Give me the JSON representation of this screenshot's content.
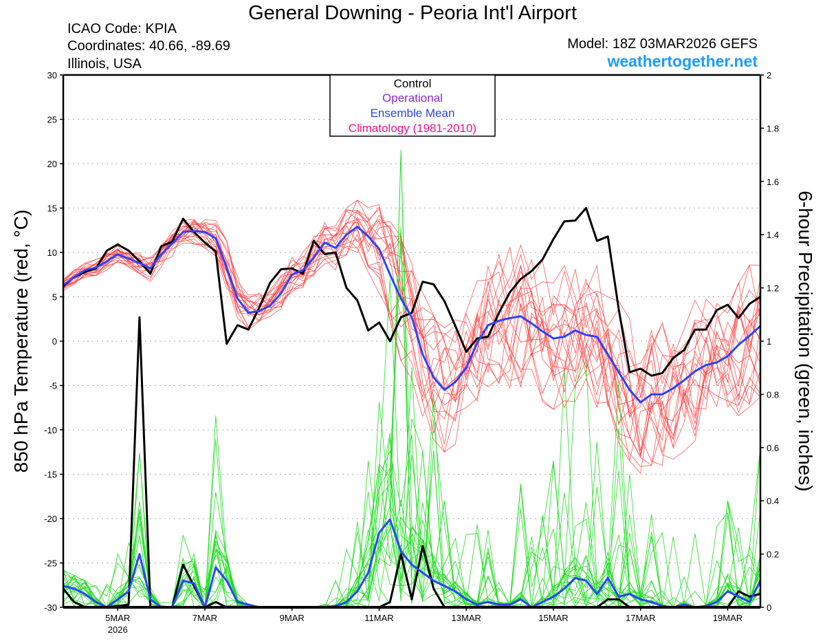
{
  "header": {
    "title": "General Downing - Peoria Int'l Airport",
    "icao": "ICAO Code: KPIA",
    "coords": "Coordinates: 40.66, -89.69",
    "region": "Illinois, USA",
    "model": "Model: 18Z 03MAR2026 GEFS",
    "site": "weathertogether.net"
  },
  "colors": {
    "control": "#000000",
    "operational": "#8a2be2",
    "mean": "#2a44ff",
    "climatology": "#ee1289",
    "members_temp": "#ff4040",
    "members_precip": "#22dd22",
    "site": "#1e9bff"
  },
  "chart_data": {
    "type": "line",
    "title": "General Downing - Peoria Int'l Airport",
    "ylabel": "850 hPa Temperature (red, °C)",
    "y2label": "6-hour Precipitation (green, inches)",
    "xlabel": "",
    "x_units": "day of March 2026 (6-hourly from 18Z 03MAR)",
    "x_start": 3.75,
    "x_step": 0.25,
    "xlim": [
      3.75,
      19.75
    ],
    "ylim": [
      -30,
      30
    ],
    "y2lim": [
      0,
      2
    ],
    "x_ticks": [
      {
        "v": 5,
        "label": "5MAR",
        "sub": "2026"
      },
      {
        "v": 7,
        "label": "7MAR"
      },
      {
        "v": 9,
        "label": "9MAR"
      },
      {
        "v": 11,
        "label": "11MAR"
      },
      {
        "v": 13,
        "label": "13MAR"
      },
      {
        "v": 15,
        "label": "15MAR"
      },
      {
        "v": 17,
        "label": "17MAR"
      },
      {
        "v": 19,
        "label": "19MAR"
      }
    ],
    "y_ticks": [
      "-30",
      "-25",
      "-20",
      "-15",
      "-10",
      "-5",
      "0",
      "5",
      "10",
      "15",
      "20",
      "25",
      "30"
    ],
    "y2_ticks": [
      "0",
      "0.2",
      "0.4",
      "0.6",
      "0.8",
      "1",
      "1.2",
      "1.4",
      "1.6",
      "1.8",
      "2"
    ],
    "grid": true,
    "legend": {
      "placement": "top-center",
      "entries": [
        "Control",
        "Operational",
        "Ensemble Mean",
        "Climatology (1981-2010)"
      ]
    },
    "series": [
      {
        "name": "Control temperature",
        "axis": "left",
        "values": [
          6.2,
          7.2,
          7.8,
          8.2,
          10.2,
          10.9,
          10.2,
          9.0,
          7.6,
          10.7,
          11.2,
          13.8,
          12.3,
          11.1,
          10.1,
          -0.3,
          1.8,
          1.3,
          3.8,
          6.6,
          8.1,
          8.2,
          7.6,
          11.3,
          9.8,
          10.0,
          6.0,
          4.6,
          1.2,
          2.1,
          0.0,
          2.7,
          3.2,
          6.7,
          6.4,
          4.5,
          1.7,
          -1.2,
          0.3,
          0.5,
          3.2,
          5.5,
          7.0,
          7.9,
          9.2,
          11.5,
          13.5,
          13.6,
          15.0,
          11.3,
          11.8,
          3.6,
          -3.5,
          -3.1,
          -3.9,
          -3.6,
          -1.9,
          -1.0,
          1.3,
          1.3,
          3.5,
          4.1,
          2.6,
          4.2,
          5.0
        ]
      },
      {
        "name": "Ensemble Mean temperature",
        "axis": "left",
        "values": [
          6.3,
          7.2,
          8.0,
          8.3,
          9.0,
          9.8,
          9.3,
          8.8,
          8.2,
          9.8,
          11.0,
          12.3,
          12.4,
          12.3,
          11.6,
          8.3,
          4.8,
          3.2,
          3.4,
          4.0,
          5.4,
          7.5,
          8.0,
          9.4,
          11.1,
          10.5,
          12.0,
          12.9,
          11.8,
          10.4,
          7.5,
          4.8,
          2.7,
          -1.5,
          -4.1,
          -5.5,
          -4.6,
          -3.0,
          -0.2,
          1.8,
          2.3,
          2.6,
          2.8,
          2.0,
          1.1,
          0.3,
          0.5,
          1.2,
          0.7,
          0.5,
          -1.5,
          -3.5,
          -5.5,
          -6.9,
          -6.0,
          -6.0,
          -5.3,
          -4.4,
          -3.4,
          -2.7,
          -2.4,
          -1.7,
          -0.4,
          0.6,
          1.7
        ]
      },
      {
        "name": "Control precipitation",
        "axis": "right",
        "values": [
          0.07,
          0.02,
          0,
          0,
          0,
          0.005,
          0.01,
          1.09,
          0,
          0,
          0,
          0.16,
          0.08,
          0,
          0.02,
          0,
          0,
          0,
          0,
          0,
          0,
          0,
          0,
          0,
          0,
          0,
          0,
          0,
          0,
          0,
          0.02,
          0.2,
          0.03,
          0.23,
          0.07,
          0,
          0,
          0,
          0,
          0,
          0,
          0,
          0,
          0,
          0,
          0,
          0,
          0,
          0,
          0,
          0.03,
          0.03,
          0,
          0,
          0,
          0,
          0,
          0,
          0,
          0,
          0,
          0,
          0.06,
          0.04,
          0.05
        ]
      },
      {
        "name": "Ensemble Mean precipitation",
        "axis": "right",
        "values": [
          0.08,
          0.07,
          0.05,
          0.02,
          0,
          0.03,
          0.06,
          0.2,
          0.03,
          0,
          0,
          0.1,
          0.09,
          0,
          0.15,
          0.1,
          0.02,
          0.01,
          0,
          0,
          0,
          0,
          0,
          0,
          0,
          0.005,
          0.02,
          0.06,
          0.13,
          0.28,
          0.33,
          0.21,
          0.16,
          0.13,
          0.1,
          0.08,
          0.06,
          0.03,
          0.01,
          0.02,
          0.01,
          0.01,
          0.03,
          0,
          0.02,
          0.04,
          0.07,
          0.11,
          0.1,
          0.05,
          0.11,
          0.04,
          0.05,
          0.03,
          0.02,
          0.005,
          0,
          0.01,
          0,
          0.005,
          0.02,
          0.06,
          0.04,
          0.02,
          0.1
        ]
      }
    ],
    "member_count": 20,
    "member_temp_spread": [
      0.8,
      0.8,
      0.8,
      0.9,
      1,
      1,
      1,
      1.2,
      1.5,
      1.5,
      1.5,
      1.5,
      1.5,
      1.8,
      2,
      3,
      2.5,
      2,
      2,
      2,
      2,
      2,
      2.2,
      2.5,
      2.5,
      2.5,
      3,
      3,
      4,
      5,
      6,
      7,
      7,
      7,
      7,
      7,
      7,
      7,
      7,
      7.5,
      7.5,
      8,
      8,
      8,
      8,
      8,
      8,
      8,
      8,
      8,
      8,
      8,
      8,
      8,
      8,
      8,
      8,
      8,
      8,
      8,
      8,
      8,
      8,
      8,
      8
    ],
    "member_precip_max": [
      0.14,
      0.12,
      0.1,
      0.1,
      0.15,
      0.2,
      0.3,
      0.58,
      0.1,
      0.02,
      0.02,
      0.3,
      0.2,
      0.1,
      0.72,
      0.2,
      0.05,
      0.01,
      0,
      0,
      0,
      0,
      0,
      0,
      0.02,
      0.1,
      0.3,
      0.45,
      0.55,
      0.77,
      1.8,
      1.8,
      0.9,
      0.6,
      0.8,
      0.4,
      0.3,
      0.3,
      0.4,
      0.3,
      0.4,
      0.3,
      0.5,
      0.4,
      0.5,
      0.7,
      0.9,
      1.0,
      1.1,
      0.9,
      1.7,
      0.9,
      0.5,
      0.4,
      0.35,
      0.3,
      0.3,
      0.2,
      0.3,
      0.25,
      0.4,
      0.4,
      0.3,
      0.25,
      0.6
    ]
  }
}
